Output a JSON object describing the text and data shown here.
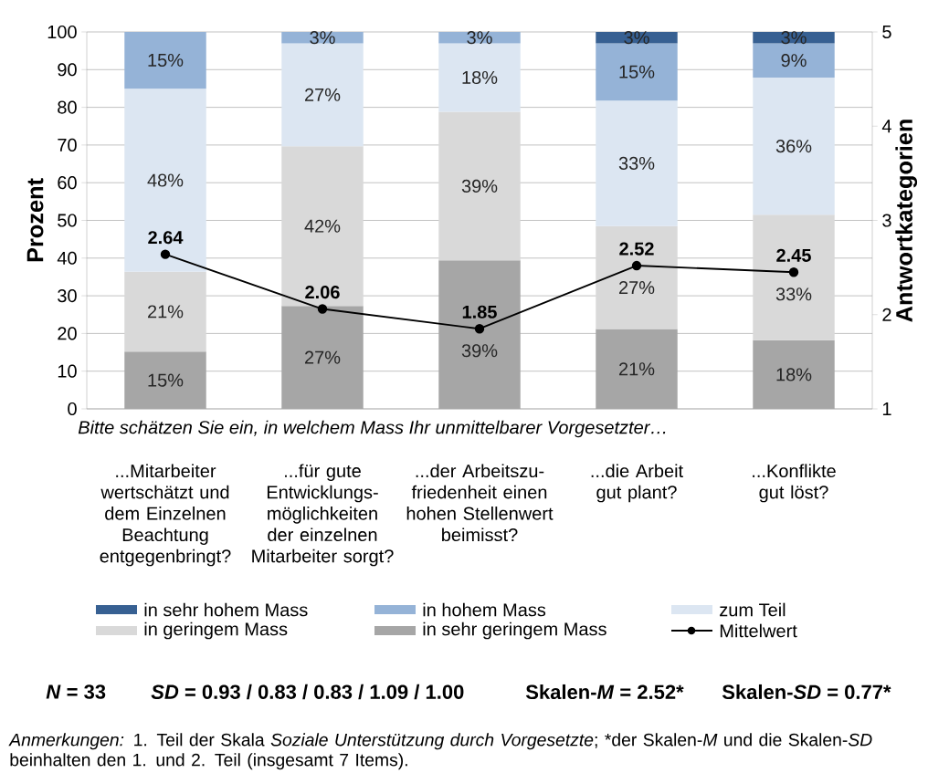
{
  "chart_data": {
    "type": "bar",
    "stacked": true,
    "grid": "y",
    "legend": "bottom",
    "xlabel": "Bitte schätzen Sie ein, in welchem Mass Ihr unmittelbarer Vorgesetzter…",
    "ylabel": "Prozent",
    "y2label": "Antwortkategorien",
    "categories": [
      "...Mitarbeiter wertschätzt und dem Einzelnen Beachtung entgegenbringt?",
      "...für gute Entwicklungs-möglichkeiten der einzelnen Mitarbeiter sorgt?",
      "...der Arbeitszu-friedenheit einen hohen Stellenwert beimisst?",
      "...die Arbeit gut plant?",
      "...Konflikte gut löst?"
    ],
    "ylim": [
      0,
      100
    ],
    "yticks": [
      0,
      10,
      20,
      30,
      40,
      50,
      60,
      70,
      80,
      90,
      100
    ],
    "y2lim": [
      1,
      5
    ],
    "y2ticks": [
      1,
      2,
      3,
      4,
      5
    ],
    "series": [
      {
        "name": "in sehr geringem Mass",
        "color": "#a6a6a6",
        "values": [
          15.2,
          27.3,
          39.4,
          21.2,
          18.2
        ],
        "value_labels": [
          "15%",
          "27%",
          "39%",
          "21%",
          "18%"
        ]
      },
      {
        "name": "in geringem Mass",
        "color": "#d9d9d9",
        "values": [
          21.2,
          42.4,
          39.4,
          27.3,
          33.3
        ],
        "value_labels": [
          "21%",
          "42%",
          "39%",
          "27%",
          "33%"
        ]
      },
      {
        "name": "zum Teil",
        "color": "#dce6f2",
        "values": [
          48.5,
          27.3,
          18.2,
          33.3,
          36.4
        ],
        "value_labels": [
          "48%",
          "27%",
          "18%",
          "33%",
          "36%"
        ]
      },
      {
        "name": "in hohem Mass",
        "color": "#95b3d7",
        "values": [
          15.2,
          3.0,
          3.0,
          15.2,
          9.1
        ],
        "value_labels": [
          "15%",
          "3%",
          "3%",
          "15%",
          "9%"
        ]
      },
      {
        "name": "in sehr hohem Mass",
        "color": "#376092",
        "values": [
          null,
          null,
          null,
          3.0,
          3.0
        ],
        "value_labels": [
          null,
          null,
          null,
          "3%",
          "3%"
        ]
      },
      {
        "name": "Mittelwert",
        "type": "line",
        "axis": "y2",
        "color": "#000000",
        "marker": "circle",
        "line_style": "solid",
        "values": [
          2.64,
          2.06,
          1.85,
          2.52,
          2.45
        ],
        "value_labels": [
          "2.64",
          "2.06",
          "1.85",
          "2.52",
          "2.45"
        ]
      }
    ],
    "annotations": [
      "*N* = 33",
      "*SD* = 0.93 / 0.83 / 0.83 / 1.09 / 1.00",
      "Skalen-*M* = 2.52*",
      "Skalen-*SD* = 0.77*",
      "*Anmerkungen:* 1. Teil der Skala *Soziale Unterstützung durch Vorgesetzte*; *der Skalen-*M* und die Skalen-*SD* beinhalten den 1. und 2. Teil (insgesamt 7 Items)."
    ]
  }
}
